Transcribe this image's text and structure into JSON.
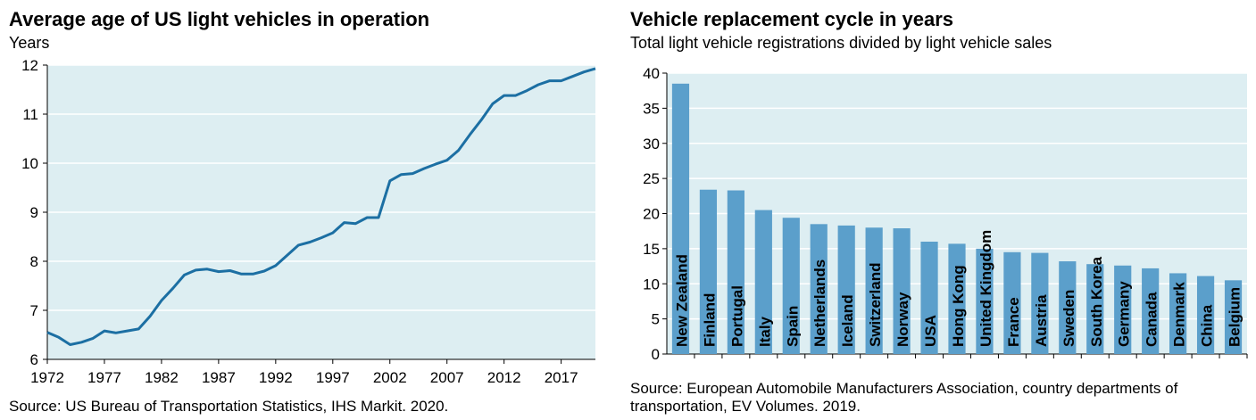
{
  "colors": {
    "plot_bg": "#ddeef2",
    "line": "#1c6fa3",
    "bar": "#5b9fcb",
    "grid": "#ffffff"
  },
  "chart_data": [
    {
      "type": "line",
      "title": "Average age of US light vehicles in operation",
      "subtitle": "Years",
      "source": "Source: US Bureau of Transportation Statistics, IHS Markit. 2020.",
      "ylim": [
        6,
        12
      ],
      "yticks": [
        "6",
        "7",
        "8",
        "9",
        "10",
        "11",
        "12"
      ],
      "xlim": [
        1972,
        2020
      ],
      "xticks": [
        "1972",
        "1977",
        "1982",
        "1987",
        "1992",
        "1997",
        "2002",
        "2007",
        "2012",
        "2017"
      ],
      "grid": true,
      "series": [
        {
          "x": [
            1972,
            1973,
            1974,
            1975,
            1976,
            1977,
            1978,
            1979,
            1980,
            1981,
            1982,
            1983,
            1984,
            1985,
            1986,
            1987,
            1988,
            1989,
            1990,
            1991,
            1992,
            1993,
            1994,
            1995,
            1996,
            1997,
            1998,
            1999,
            2000,
            2001,
            2002,
            2003,
            2004,
            2005,
            2006,
            2007,
            2008,
            2009,
            2010,
            2011,
            2012,
            2013,
            2014,
            2015,
            2016,
            2017,
            2018,
            2019,
            2020
          ],
          "values": [
            6.55,
            6.45,
            6.3,
            6.35,
            6.43,
            6.58,
            6.54,
            6.58,
            6.62,
            6.88,
            7.2,
            7.45,
            7.72,
            7.82,
            7.84,
            7.79,
            7.81,
            7.74,
            7.74,
            7.8,
            7.91,
            8.12,
            8.33,
            8.39,
            8.48,
            8.58,
            8.79,
            8.77,
            8.89,
            8.89,
            9.64,
            9.77,
            9.79,
            9.89,
            9.98,
            10.06,
            10.26,
            10.58,
            10.88,
            11.21,
            11.38,
            11.38,
            11.48,
            11.6,
            11.68,
            11.68,
            11.77,
            11.86,
            11.93
          ]
        }
      ]
    },
    {
      "type": "bar",
      "title": "Vehicle replacement cycle in years",
      "subtitle": "Total light vehicle registrations divided by light vehicle sales",
      "source": "Source: European Automobile Manufacturers Association, country departments of transportation, EV Volumes. 2019.",
      "ylim": [
        0,
        40
      ],
      "yticks": [
        "0",
        "5",
        "10",
        "15",
        "20",
        "25",
        "30",
        "35",
        "40"
      ],
      "grid": true,
      "categories": [
        "New Zealand",
        "Finland",
        "Portugal",
        "Italy",
        "Spain",
        "Netherlands",
        "Iceland",
        "Switzerland",
        "Norway",
        "USA",
        "Hong Kong",
        "United Kingdom",
        "France",
        "Austria",
        "Sweden",
        "South Korea",
        "Germany",
        "Canada",
        "Denmark",
        "China",
        "Belgium"
      ],
      "values": [
        38.5,
        23.4,
        23.3,
        20.5,
        19.4,
        18.5,
        18.3,
        18.0,
        17.9,
        16.0,
        15.7,
        15.0,
        14.5,
        14.4,
        13.2,
        12.8,
        12.6,
        12.2,
        11.5,
        11.1,
        10.5
      ]
    }
  ]
}
